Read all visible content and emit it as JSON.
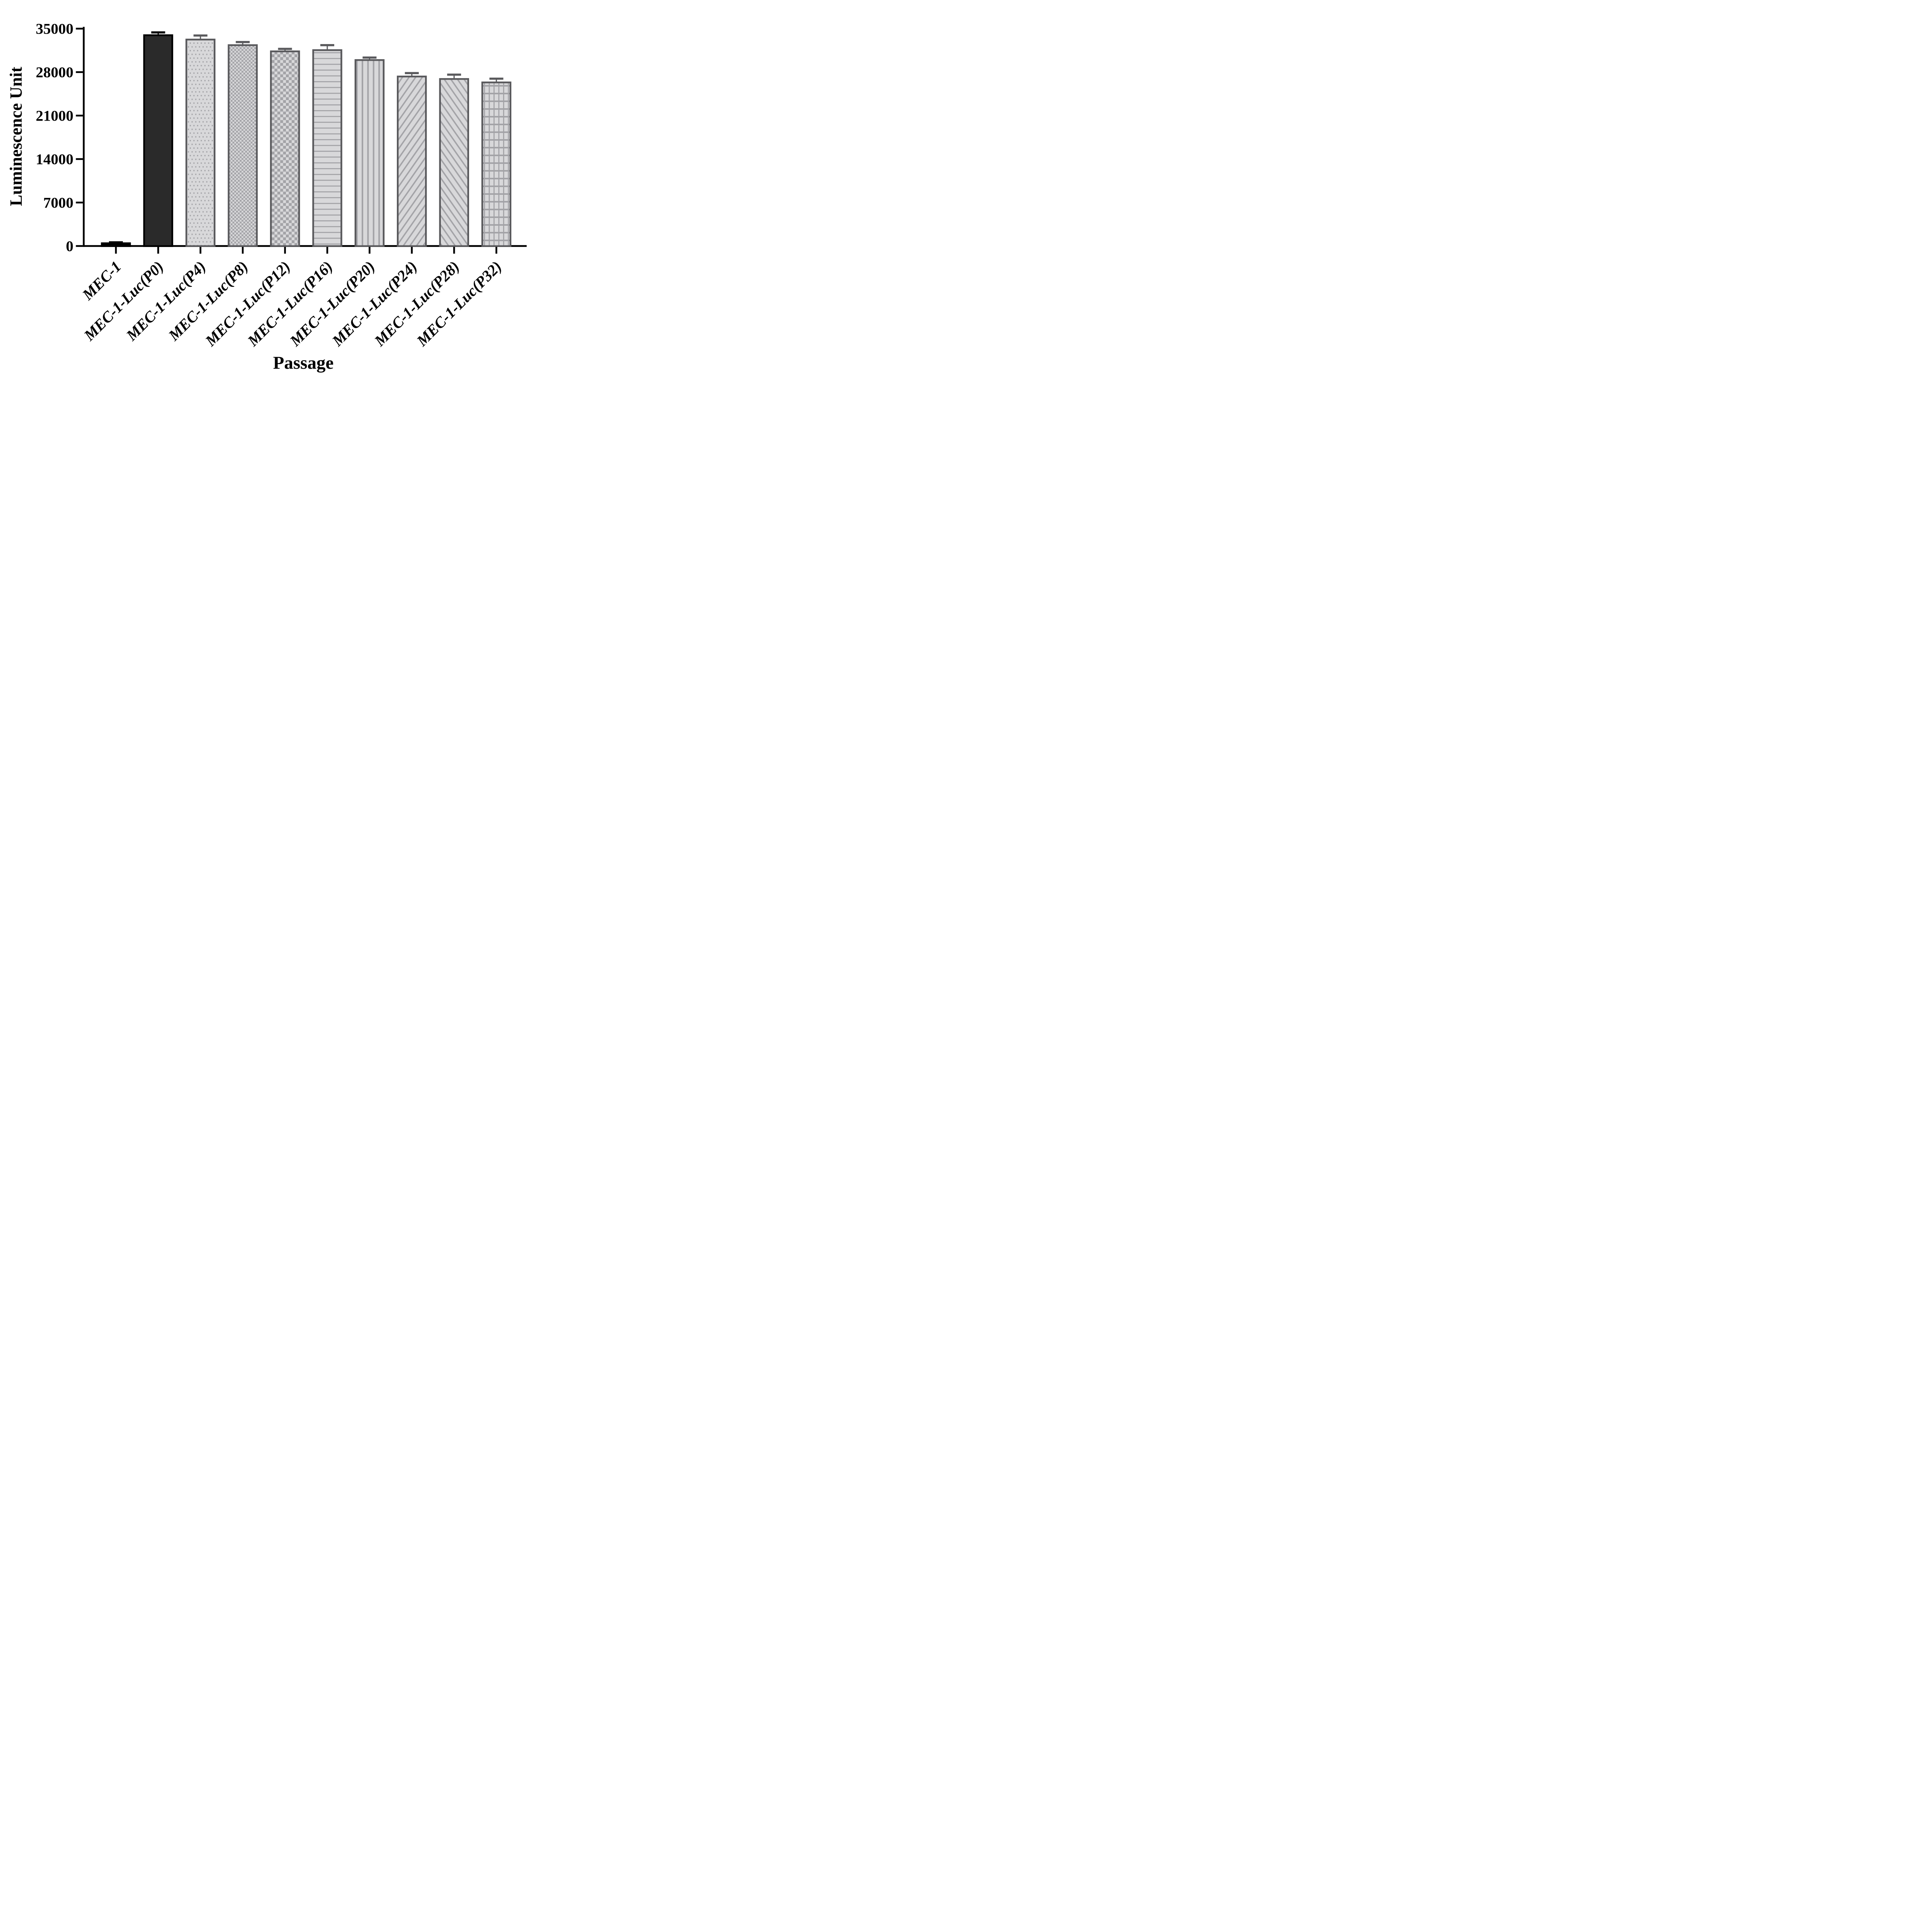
{
  "figure": {
    "y_axis_label": "Luminescence Unit",
    "x_axis_label": "Passage"
  },
  "chart_data": {
    "type": "bar",
    "title": "",
    "xlabel": "Passage",
    "ylabel": "Luminescence Unit",
    "ylim": [
      0,
      35000
    ],
    "grid": false,
    "legend": false,
    "y_ticks": [
      0,
      7000,
      14000,
      21000,
      28000,
      35000
    ],
    "categories": [
      "MEC-1",
      "MEC-1-Luc(P0)",
      "MEC-1-Luc(P4)",
      "MEC-1-Luc(P8)",
      "MEC-1-Luc(P12)",
      "MEC-1-Luc(P16)",
      "MEC-1-Luc(P20)",
      "MEC-1-Luc(P24)",
      "MEC-1-Luc(P28)",
      "MEC-1-Luc(P32)"
    ],
    "values": [
      300,
      33800,
      33100,
      32200,
      31200,
      31400,
      29800,
      27150,
      26750,
      26200
    ],
    "errors": [
      150,
      450,
      650,
      500,
      400,
      800,
      400,
      550,
      700,
      600
    ],
    "bar_styles": [
      "solid-black",
      "solid-dark",
      "dots",
      "checker-small",
      "checker-large",
      "stripes-horizontal",
      "stripes-vertical",
      "stripes-diagonal-up",
      "stripes-diagonal-down",
      "grid"
    ]
  },
  "colors": {
    "axis": "#000000",
    "solid_dark_fill": "#2a2a2a",
    "pattern_bg": "#d8d8da",
    "pattern_fg": "#a3a3a7",
    "pattern_border": "#59595c",
    "error_gray": "#59595c",
    "error_black": "#000000"
  }
}
